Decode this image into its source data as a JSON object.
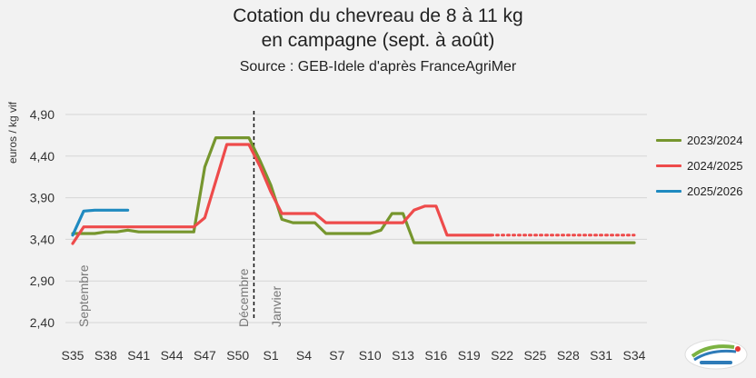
{
  "header": {
    "title_line1": "Cotation du chevreau de 8 à 11 kg",
    "title_line2": "en campagne (sept. à août)",
    "source": "Source : GEB-Idele d'après FranceAgriMer"
  },
  "chart_data": {
    "type": "line",
    "ylabel": "euros / kg vif",
    "ylim": [
      2.4,
      5.05
    ],
    "yticks": [
      "2,40",
      "2,90",
      "3,40",
      "3,90",
      "4,40",
      "4,90"
    ],
    "ytick_values": [
      2.4,
      2.9,
      3.4,
      3.9,
      4.4,
      4.9
    ],
    "x_tick_labels": [
      "S35",
      "S38",
      "S41",
      "S44",
      "S47",
      "S50",
      "S1",
      "S4",
      "S7",
      "S10",
      "S13",
      "S16",
      "S19",
      "S22",
      "S25",
      "S28",
      "S31",
      "S34"
    ],
    "x_tick_indices": [
      0,
      3,
      6,
      9,
      12,
      15,
      18,
      21,
      24,
      27,
      30,
      33,
      36,
      39,
      42,
      45,
      48,
      51
    ],
    "n_weeks": 52,
    "annotations": [
      {
        "text": "Septembre",
        "week_index": 1
      },
      {
        "text": "Décembre",
        "week_index": 15.5
      },
      {
        "text": "Janvier",
        "week_index": 18.5
      }
    ],
    "divider_week_index": 16.5,
    "grid": true,
    "legend_position": "right",
    "series": [
      {
        "name": "2023/2024",
        "color": "#76962e",
        "values": [
          3.47,
          3.47,
          3.47,
          3.49,
          3.49,
          3.51,
          3.49,
          3.49,
          3.49,
          3.49,
          3.49,
          3.49,
          4.27,
          4.62,
          4.62,
          4.62,
          4.62,
          4.35,
          4.05,
          3.64,
          3.6,
          3.6,
          3.6,
          3.47,
          3.47,
          3.47,
          3.47,
          3.47,
          3.51,
          3.71,
          3.71,
          3.36,
          3.36,
          3.36,
          3.36,
          3.36,
          3.36,
          3.36,
          3.36,
          3.36,
          3.36,
          3.36,
          3.36,
          3.36,
          3.36,
          3.36,
          3.36,
          3.36,
          3.36,
          3.36,
          3.36,
          3.36
        ],
        "dotted_from_index": null
      },
      {
        "name": "2024/2025",
        "color": "#ee4b4b",
        "values": [
          3.35,
          3.55,
          3.55,
          3.55,
          3.55,
          3.55,
          3.55,
          3.55,
          3.55,
          3.55,
          3.55,
          3.55,
          3.66,
          4.1,
          4.54,
          4.54,
          4.54,
          4.28,
          3.97,
          3.71,
          3.71,
          3.71,
          3.71,
          3.6,
          3.6,
          3.6,
          3.6,
          3.6,
          3.6,
          3.6,
          3.6,
          3.75,
          3.8,
          3.8,
          3.45,
          3.45,
          3.45,
          3.45,
          3.45,
          3.45,
          3.45,
          3.45,
          3.45,
          3.45,
          3.45,
          3.45,
          3.45,
          3.45,
          3.45,
          3.45,
          3.45,
          3.45
        ],
        "dotted_from_index": 38
      },
      {
        "name": "2025/2026",
        "color": "#1f8ac0",
        "values": [
          3.45,
          3.74,
          3.75,
          3.75,
          3.75,
          3.75
        ],
        "dotted_from_index": null
      }
    ]
  }
}
